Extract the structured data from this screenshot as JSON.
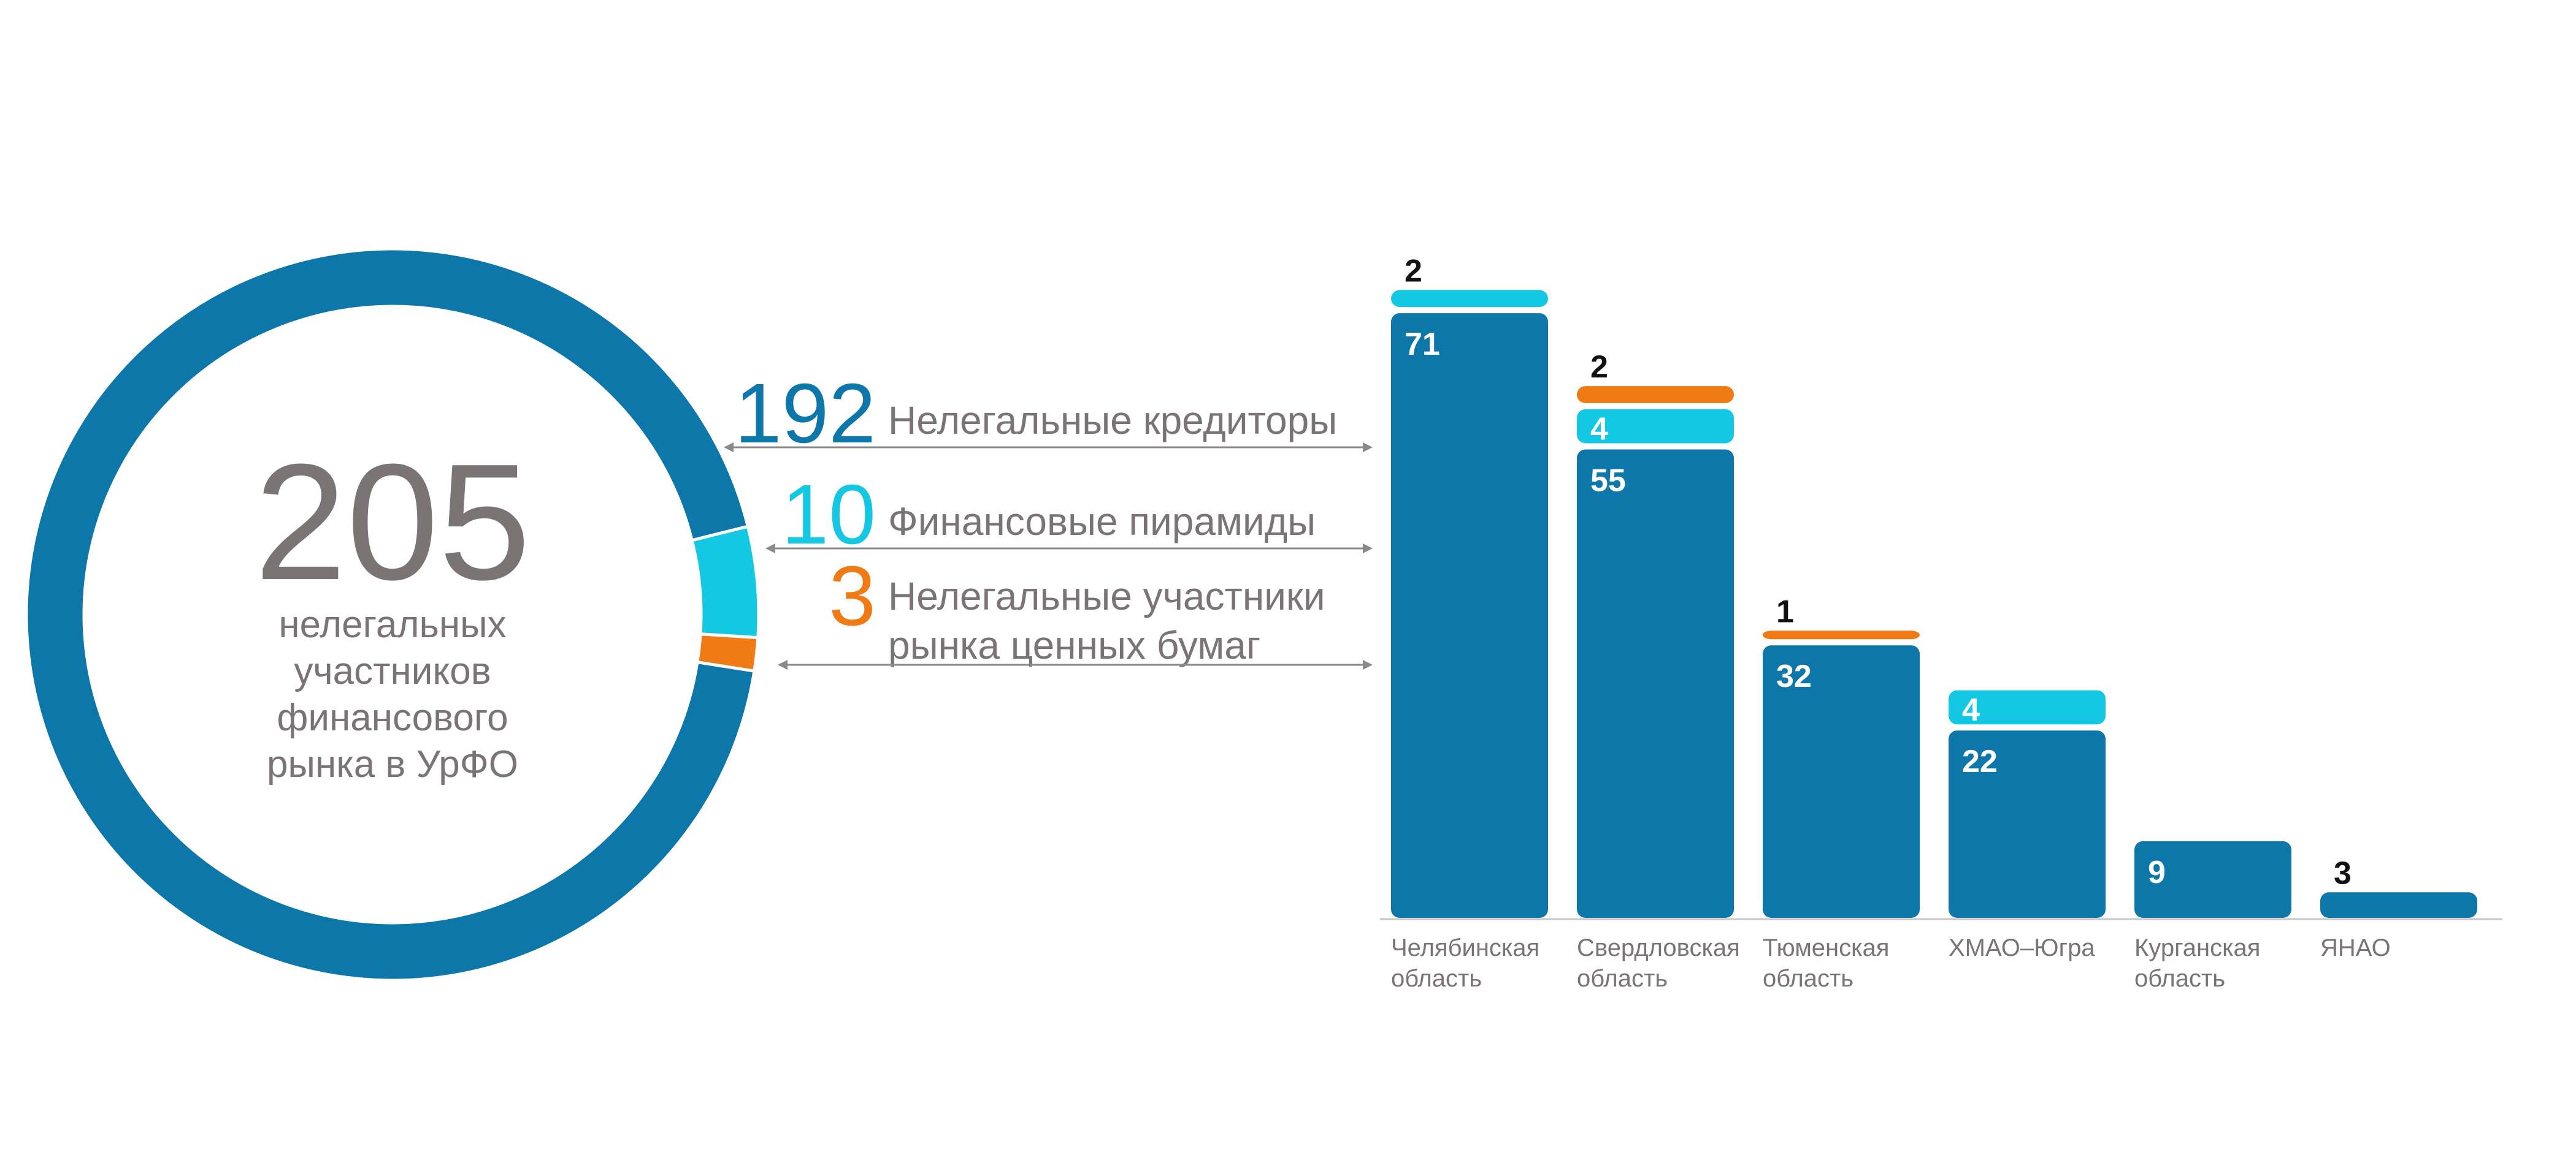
{
  "colors": {
    "lenders": "#0C77A8",
    "pyramids": "#14C8E3",
    "securities": "#F07A13",
    "total_text": "#7A7474",
    "label_text": "#7A7474",
    "axis": "#C8C8C8",
    "bar_label_dark": "#111111",
    "bar_label_light": "#FFFFFF"
  },
  "donut": {
    "total": "205",
    "caption": [
      "нелегальных",
      "участников",
      "финансового",
      "рынка в УрФО"
    ]
  },
  "legend": [
    {
      "key": "lenders",
      "value": "192",
      "label": [
        "Нелегальные кредиторы"
      ]
    },
    {
      "key": "pyramids",
      "value": "10",
      "label": [
        "Финансовые пирамиды"
      ]
    },
    {
      "key": "securities",
      "value": "3",
      "label": [
        "Нелегальные участники",
        "рынка ценных бумаг"
      ]
    }
  ],
  "chart_data": [
    {
      "type": "pie",
      "labels": [
        "Нелегальные кредиторы",
        "Финансовые пирамиды",
        "Нелегальные участники рынка ценных бумаг"
      ],
      "values": [
        192,
        10,
        3
      ]
    },
    {
      "type": "bar",
      "stacked": true,
      "categories": [
        [
          "Челябинская",
          "область"
        ],
        [
          "Свердловская",
          "область"
        ],
        [
          "Тюменская",
          "область"
        ],
        [
          "ХМАО–Югра"
        ],
        [
          "Курганская",
          "область"
        ],
        [
          "ЯНАО"
        ]
      ],
      "series": [
        {
          "key": "lenders",
          "name": "Нелегальные кредиторы",
          "values": [
            71,
            55,
            32,
            22,
            9,
            3
          ]
        },
        {
          "key": "pyramids",
          "name": "Финансовые пирамиды",
          "values": [
            2,
            4,
            0,
            4,
            0,
            0
          ]
        },
        {
          "key": "securities",
          "name": "Нелегальные участники рынка ценных бумаг",
          "values": [
            0,
            2,
            1,
            0,
            0,
            0
          ]
        }
      ]
    }
  ]
}
